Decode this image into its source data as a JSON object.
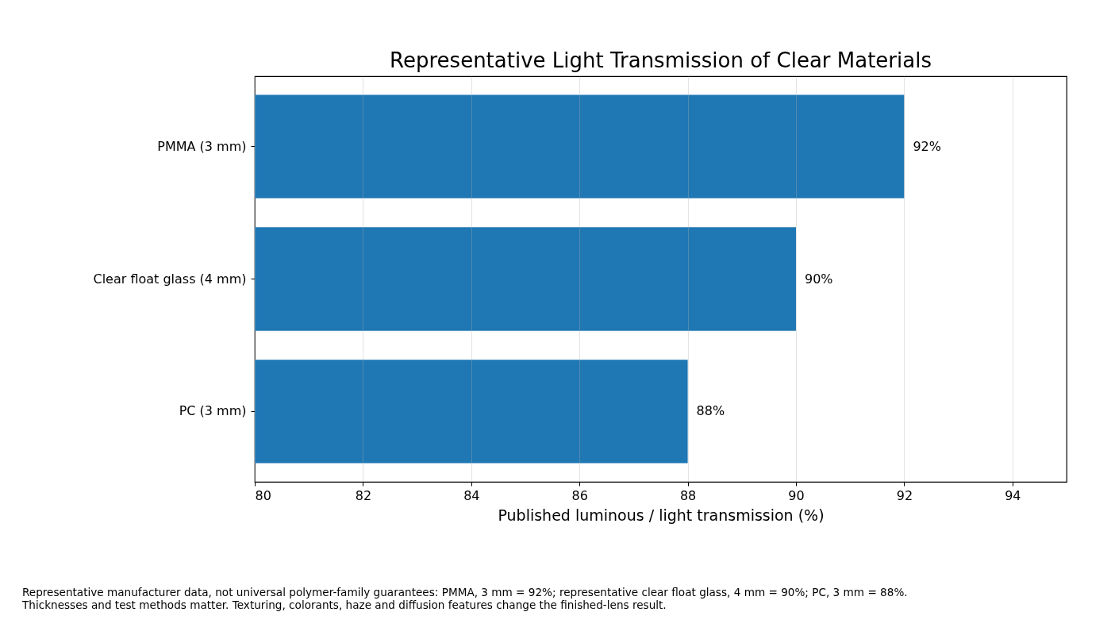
{
  "chart_data": {
    "type": "bar",
    "orientation": "horizontal",
    "title": "Representative Light Transmission of Clear Materials",
    "xlabel": "Published luminous / light transmission (%)",
    "categories": [
      "PMMA (3 mm)",
      "Clear float glass (4 mm)",
      "PC (3 mm)"
    ],
    "values": [
      92,
      90,
      88
    ],
    "value_labels": [
      "92%",
      "90%",
      "88%"
    ],
    "color": "#1f77b4",
    "xlim": [
      80,
      95
    ],
    "xticks": [
      80,
      82,
      84,
      86,
      88,
      90,
      92,
      94
    ],
    "grid": "x",
    "annotations": [
      "Representative manufacturer data, not universal polymer-family guarantees: PMMA, 3 mm = 92%; representative clear float glass, 4 mm = 90%; PC, 3 mm = 88%. Thicknesses and test methods matter. Texturing, colorants, haze and diffusion features change the finished-lens result."
    ]
  }
}
